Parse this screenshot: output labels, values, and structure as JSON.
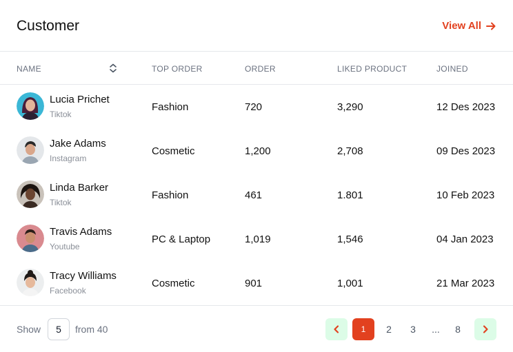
{
  "header": {
    "title": "Customer",
    "view_all_label": "View All"
  },
  "columns": {
    "name": "NAME",
    "top_order": "TOP ORDER",
    "order": "ORDER",
    "liked_product": "LIKED PRODUCT",
    "joined": "JOINED"
  },
  "rows": [
    {
      "name": "Lucia Prichet",
      "source": "Tiktok",
      "top_order": "Fashion",
      "order": "720",
      "liked": "3,290",
      "joined": "12 Des 2023"
    },
    {
      "name": "Jake Adams",
      "source": "Instagram",
      "top_order": "Cosmetic",
      "order": "1,200",
      "liked": "2,708",
      "joined": "09 Des 2023"
    },
    {
      "name": "Linda Barker",
      "source": "Tiktok",
      "top_order": "Fashion",
      "order": "461",
      "liked": "1.801",
      "joined": "10 Feb 2023"
    },
    {
      "name": "Travis Adams",
      "source": "Youtube",
      "top_order": "PC & Laptop",
      "order": "1,019",
      "liked": "1,546",
      "joined": "04 Jan 2023"
    },
    {
      "name": "Tracy  Williams",
      "source": "Facebook",
      "top_order": "Cosmetic",
      "order": "901",
      "liked": "1,001",
      "joined": "21 Mar 2023"
    }
  ],
  "footer": {
    "show_label": "Show",
    "page_size": "5",
    "from_label": "from 40",
    "pages": [
      "1",
      "2",
      "3",
      "...",
      "8"
    ]
  },
  "colors": {
    "accent": "#e2411f",
    "arrow_bg": "#dcfce7"
  },
  "icons": [
    "arrow-right-icon",
    "sort-icon",
    "chevron-left-icon",
    "chevron-right-icon"
  ]
}
